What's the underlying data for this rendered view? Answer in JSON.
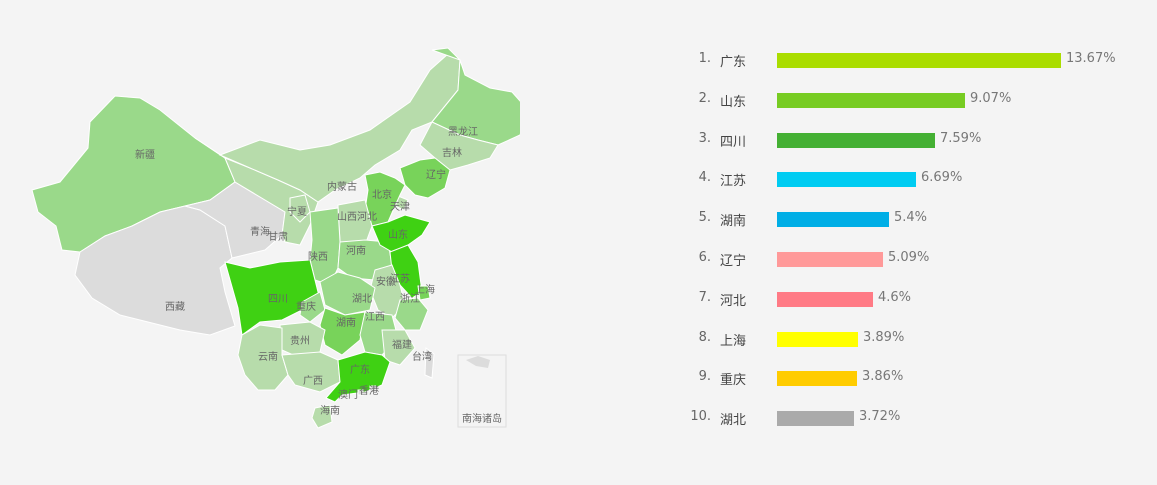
{
  "chart_data": {
    "type": "bar",
    "orientation": "horizontal",
    "categories": [
      "广东",
      "山东",
      "四川",
      "江苏",
      "湖南",
      "辽宁",
      "河北",
      "上海",
      "重庆",
      "湖北"
    ],
    "ranks": [
      "1.",
      "2.",
      "3.",
      "4.",
      "5.",
      "6.",
      "7.",
      "8.",
      "9.",
      "10."
    ],
    "values": [
      13.67,
      9.07,
      7.59,
      6.69,
      5.4,
      5.09,
      4.6,
      3.89,
      3.86,
      3.72
    ],
    "value_labels": [
      "13.67%",
      "9.07%",
      "7.59%",
      "6.69%",
      "5.4%",
      "5.09%",
      "4.6%",
      "3.89%",
      "3.86%",
      "3.72%"
    ],
    "colors": [
      "#aadd00",
      "#77cc22",
      "#44b033",
      "#00ccf2",
      "#00aee6",
      "#ff9999",
      "#ff7a85",
      "#ffff00",
      "#ffcc00",
      "#aaaaaa"
    ],
    "xlim": [
      0,
      13.67
    ],
    "grid": false
  },
  "map": {
    "provinces": [
      {
        "name": "新疆",
        "level": "mid"
      },
      {
        "name": "西藏",
        "level": "none"
      },
      {
        "name": "青海",
        "level": "none"
      },
      {
        "name": "甘肃",
        "level": "light"
      },
      {
        "name": "宁夏",
        "level": "light"
      },
      {
        "name": "内蒙古",
        "level": "light"
      },
      {
        "name": "黑龙江",
        "level": "mid"
      },
      {
        "name": "吉林",
        "level": "light"
      },
      {
        "name": "辽宁",
        "level": "high"
      },
      {
        "name": "北京",
        "level": "mid"
      },
      {
        "name": "天津",
        "level": "light"
      },
      {
        "name": "河北",
        "level": "high"
      },
      {
        "name": "山西",
        "level": "light"
      },
      {
        "name": "陕西",
        "level": "mid"
      },
      {
        "name": "河南",
        "level": "mid"
      },
      {
        "name": "山东",
        "level": "top"
      },
      {
        "name": "江苏",
        "level": "top"
      },
      {
        "name": "安徽",
        "level": "light"
      },
      {
        "name": "上海",
        "level": "high"
      },
      {
        "name": "浙江",
        "level": "mid"
      },
      {
        "name": "湖北",
        "level": "mid"
      },
      {
        "name": "四川",
        "level": "top"
      },
      {
        "name": "重庆",
        "level": "mid"
      },
      {
        "name": "湖南",
        "level": "high"
      },
      {
        "name": "江西",
        "level": "mid"
      },
      {
        "name": "福建",
        "level": "light"
      },
      {
        "name": "台湾",
        "level": "none"
      },
      {
        "name": "贵州",
        "level": "light"
      },
      {
        "name": "云南",
        "level": "light"
      },
      {
        "name": "广西",
        "level": "light"
      },
      {
        "name": "广东",
        "level": "top"
      },
      {
        "name": "香港",
        "level": "none"
      },
      {
        "name": "澳门",
        "level": "none"
      },
      {
        "name": "海南",
        "level": "light"
      }
    ],
    "inset_label": "南海诸岛",
    "colors": {
      "none": "#dcdcdc",
      "light": "#b7dcab",
      "mid": "#9ad98a",
      "high": "#78d35a",
      "top": "#3fd113",
      "border": "#ffffff"
    }
  }
}
